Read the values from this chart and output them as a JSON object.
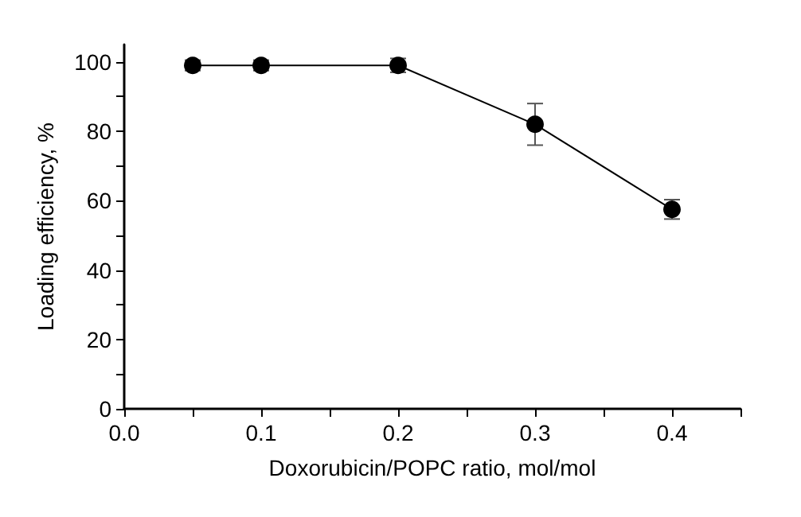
{
  "chart_data": {
    "type": "line",
    "xlabel": "Doxorubicin/POPC ratio, mol/mol",
    "ylabel": "Loading efficiency, %",
    "x": [
      0.05,
      0.1,
      0.2,
      0.3,
      0.4
    ],
    "values": [
      99,
      99,
      99,
      82,
      57.5
    ],
    "errors": [
      1.5,
      1.5,
      2,
      6,
      2.8
    ],
    "color": "#000000",
    "marker": "circle",
    "line_style": "solid",
    "grid": false,
    "xlim": [
      0,
      0.45
    ],
    "xticks": [
      {
        "value": 0,
        "label": "0.0"
      },
      {
        "value": 0.05,
        "label": null
      },
      {
        "value": 0.1,
        "label": "0.1"
      },
      {
        "value": 0.15,
        "label": null
      },
      {
        "value": 0.2,
        "label": "0.2"
      },
      {
        "value": 0.25,
        "label": null
      },
      {
        "value": 0.3,
        "label": "0.3"
      },
      {
        "value": 0.35,
        "label": null
      },
      {
        "value": 0.4,
        "label": "0.4"
      },
      {
        "value": 0.45,
        "label": null
      }
    ],
    "ylim": [
      0,
      105
    ],
    "yticks": [
      0,
      {
        "value": 10,
        "label": null
      },
      20,
      {
        "value": 30,
        "label": null
      },
      40,
      {
        "value": 50,
        "label": null
      },
      60,
      {
        "value": 70,
        "label": null
      },
      80,
      {
        "value": 90,
        "label": null
      },
      100
    ]
  }
}
